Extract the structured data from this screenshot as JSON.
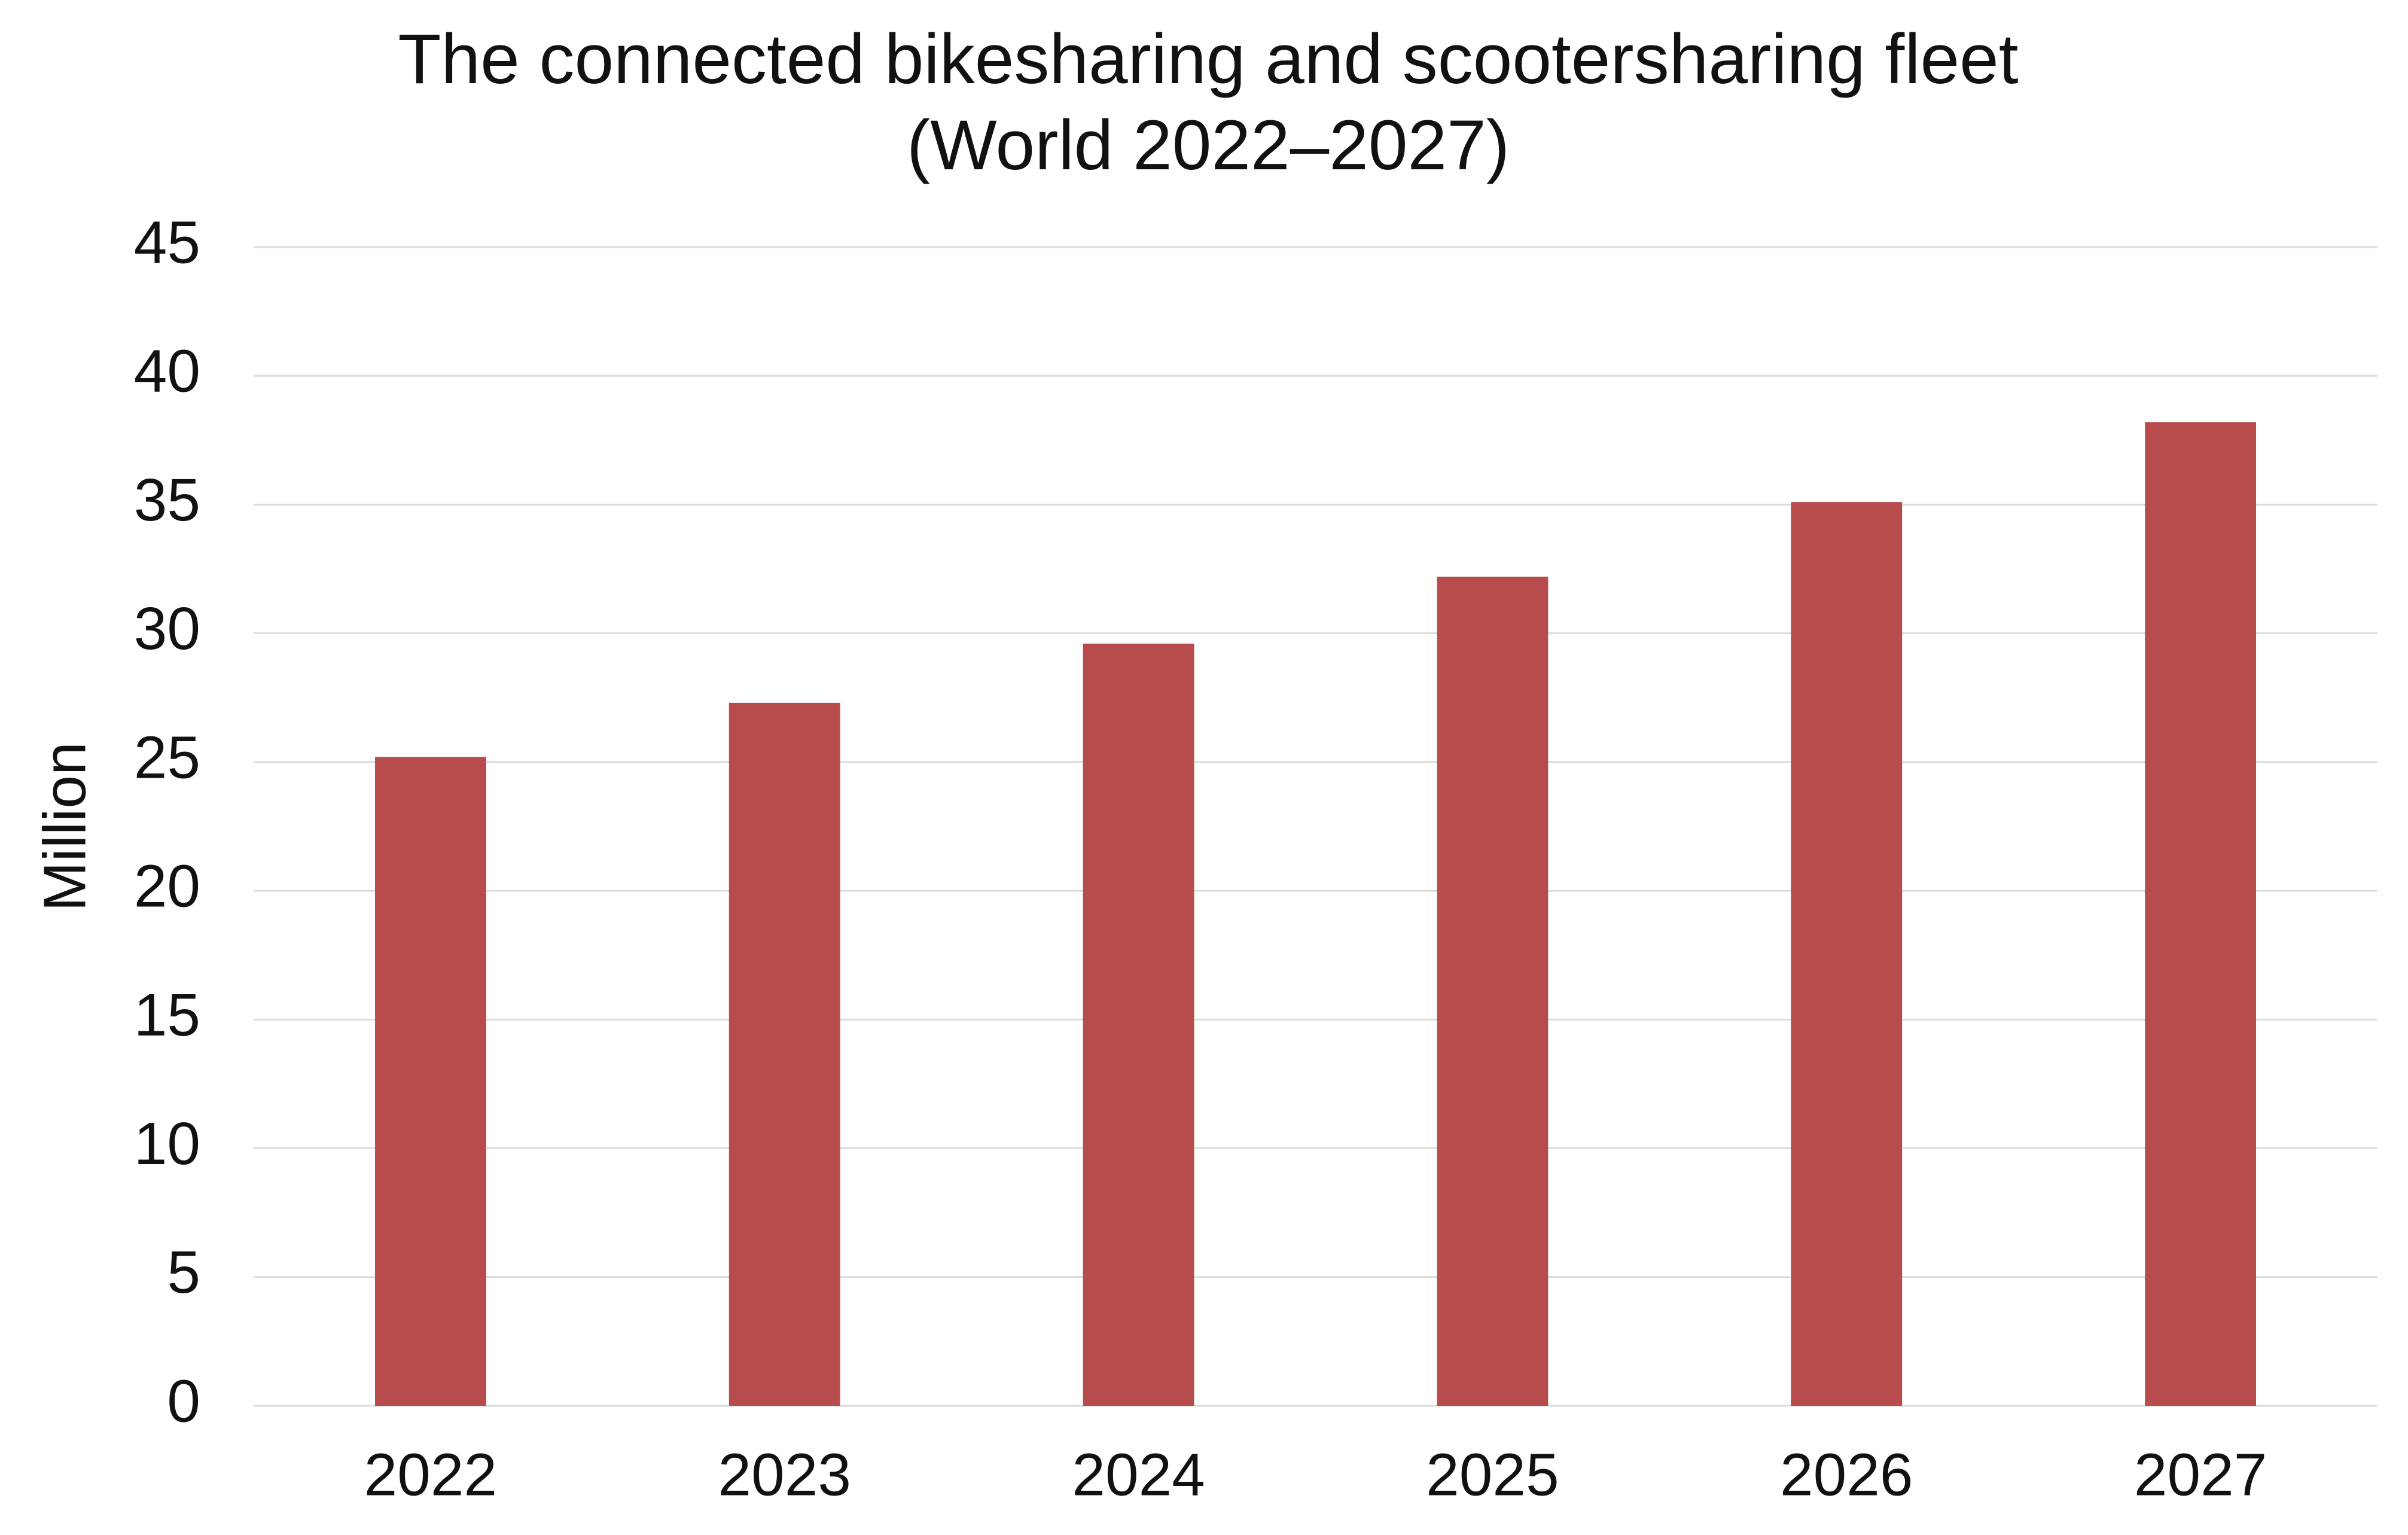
{
  "chart_data": {
    "type": "bar",
    "title": [
      "The connected bikesharing and scootersharing fleet",
      "(World 2022–2027)"
    ],
    "y_label": "Million",
    "categories": [
      "2022",
      "2023",
      "2024",
      "2025",
      "2026",
      "2027"
    ],
    "values": [
      25.2,
      27.3,
      29.6,
      32.2,
      35.1,
      38.2
    ],
    "color": "#b84c4c",
    "ylim": [
      0,
      45
    ],
    "yticks": [
      0,
      5,
      10,
      15,
      20,
      25,
      30,
      35,
      40,
      45
    ],
    "grid": true
  }
}
